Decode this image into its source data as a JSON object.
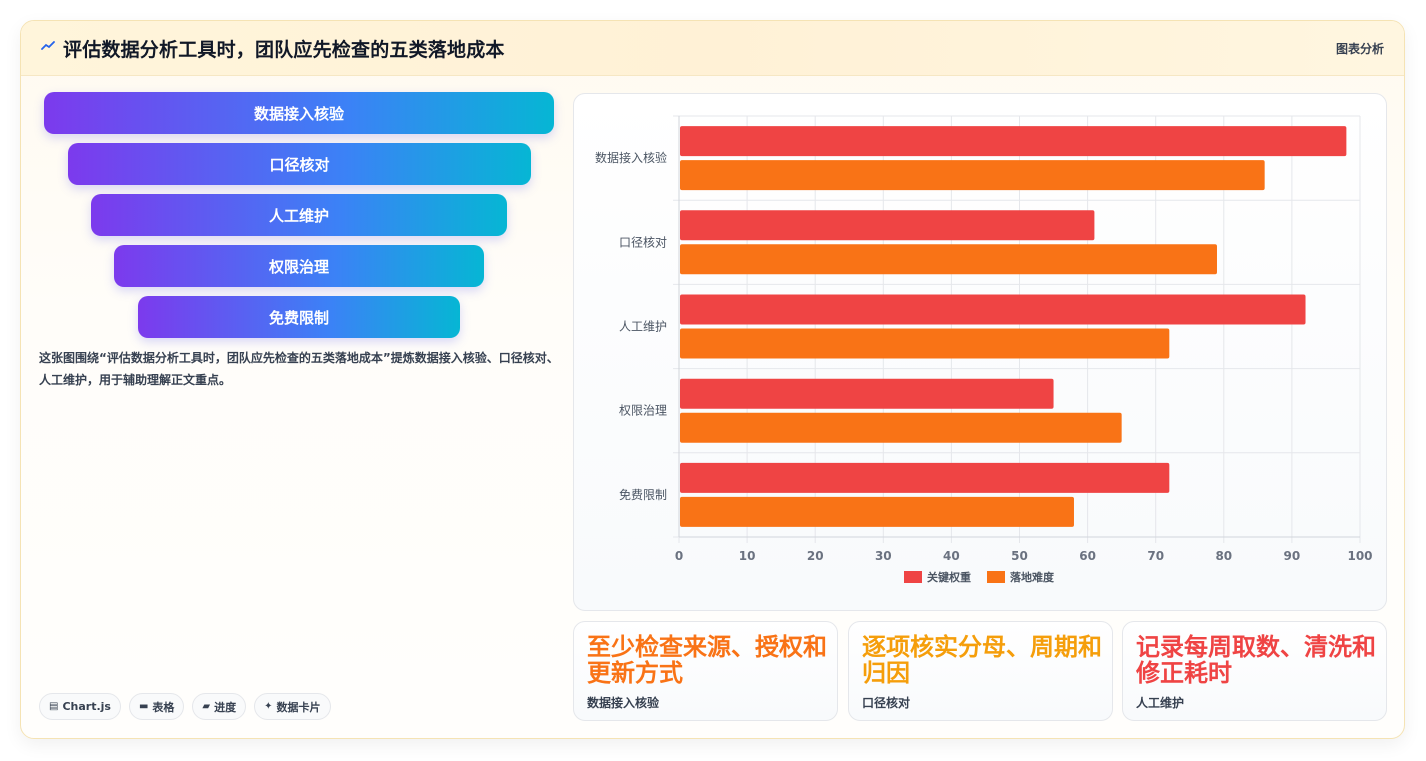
{
  "header": {
    "title": "评估数据分析工具时，团队应先检查的五类落地成本",
    "tag": "图表分析",
    "icon": "trend-line-icon"
  },
  "funnel": {
    "items": [
      "数据接入核验",
      "口径核对",
      "人工维护",
      "权限治理",
      "免费限制"
    ]
  },
  "description": "这张图围绕“评估数据分析工具时，团队应先检查的五类落地成本”提炼数据接入核验、口径核对、人工维护，用于辅助理解正文重点。",
  "chips": [
    {
      "icon": "chart-icon",
      "glyph": "▤",
      "label": "Chart.js"
    },
    {
      "icon": "table-icon",
      "glyph": "▬",
      "label": "表格"
    },
    {
      "icon": "progress-icon",
      "glyph": "▰",
      "label": "进度"
    },
    {
      "icon": "sparkle-icon",
      "glyph": "✦",
      "label": "数据卡片"
    }
  ],
  "chart_data": {
    "type": "bar",
    "orientation": "horizontal",
    "categories": [
      "数据接入核验",
      "口径核对",
      "人工维护",
      "权限治理",
      "免费限制"
    ],
    "series": [
      {
        "name": "关键权重",
        "color": "#ef4444",
        "values": [
          98,
          61,
          92,
          55,
          72
        ]
      },
      {
        "name": "落地难度",
        "color": "#f97316",
        "values": [
          86,
          79,
          72,
          65,
          58
        ]
      }
    ],
    "xlim": [
      0,
      100
    ],
    "xticks": [
      0,
      10,
      20,
      30,
      40,
      50,
      60,
      70,
      80,
      90,
      100
    ],
    "grid": true,
    "legend": "bottom"
  },
  "stats": [
    {
      "big": "至少检查来源、授权和更新方式",
      "label": "数据接入核验",
      "color": "#f97316"
    },
    {
      "big": "逐项核实分母、周期和归因",
      "label": "口径核对",
      "color": "#f59e0b"
    },
    {
      "big": "记录每周取数、清洗和修正耗时",
      "label": "人工维护",
      "color": "#ef4444"
    }
  ]
}
